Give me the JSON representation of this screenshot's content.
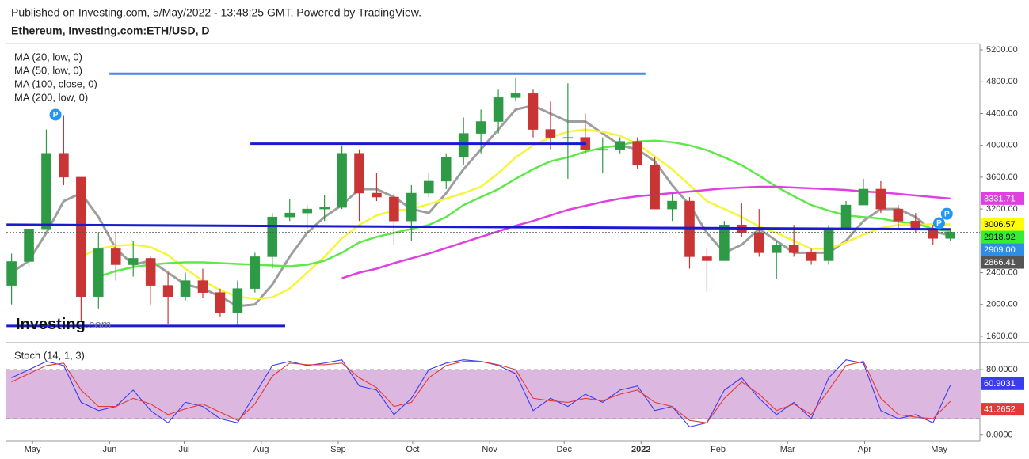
{
  "header": {
    "published": "Published on Investing.com, 5/May/2022 - 13:48:25 GMT, Powered by TradingView.",
    "symbol": "Ethereum, Investing.com:ETH/USD, D"
  },
  "watermark": [
    "Investing",
    ".com"
  ],
  "chart_data": [
    {
      "type": "candlestick",
      "xlim": [
        -0.3,
        55.7
      ],
      "ylim": [
        1530,
        5280
      ],
      "yticks": [
        {
          "value": 1600,
          "label": "1600.00"
        },
        {
          "value": 2000,
          "label": "2000.00"
        },
        {
          "value": 2400,
          "label": "2400.00"
        },
        {
          "value": 2800,
          "label": "2800.00"
        },
        {
          "value": 3200,
          "label": "3200.00"
        },
        {
          "value": 3600,
          "label": "3600.00"
        },
        {
          "value": 4000,
          "label": "4000.00"
        },
        {
          "value": 4400,
          "label": "4400.00"
        },
        {
          "value": 4800,
          "label": "4800.00"
        },
        {
          "value": 5200,
          "label": "5200.00"
        }
      ],
      "up_color": "#2e9a45",
      "down_color": "#c93535",
      "candles": {
        "open": [
          2240,
          2540,
          2950,
          3900,
          3600,
          2100,
          2700,
          2500,
          2580,
          2240,
          2100,
          2300,
          2150,
          1900,
          2200,
          2600,
          3100,
          3150,
          3200,
          3220,
          3900,
          3400,
          3350,
          3050,
          3400,
          3550,
          3850,
          4150,
          4300,
          4600,
          4650,
          4200,
          4100,
          4100,
          3950,
          3950,
          4050,
          3750,
          3200,
          3300,
          2600,
          2550,
          3000,
          2900,
          2650,
          2750,
          2650,
          2550,
          2950,
          3250,
          3450,
          3200,
          3050,
          2950,
          2830
        ],
        "high": [
          2640,
          2950,
          4200,
          4380,
          3600,
          2900,
          2900,
          2800,
          2600,
          2400,
          2400,
          2450,
          2200,
          2300,
          2650,
          3150,
          3330,
          3250,
          3380,
          4000,
          3950,
          3650,
          3400,
          3500,
          3650,
          3900,
          4350,
          4450,
          4700,
          4850,
          4700,
          4550,
          4780,
          4400,
          4100,
          4100,
          4100,
          3850,
          3400,
          3350,
          2700,
          3050,
          3280,
          3200,
          2800,
          3000,
          2700,
          3000,
          3300,
          3580,
          3550,
          3250,
          3150,
          3000,
          2960
        ],
        "low": [
          2000,
          2470,
          2950,
          3500,
          1800,
          1950,
          2300,
          2350,
          2000,
          1750,
          2050,
          2080,
          1850,
          1720,
          2150,
          2450,
          3050,
          2950,
          3050,
          3200,
          3050,
          3300,
          2750,
          2800,
          3350,
          3450,
          3750,
          3900,
          4150,
          4550,
          4100,
          3950,
          3580,
          3900,
          3650,
          3900,
          3700,
          3200,
          3050,
          2450,
          2160,
          2550,
          2850,
          2600,
          2320,
          2600,
          2500,
          2500,
          2950,
          3250,
          3150,
          2950,
          2900,
          2750,
          2800
        ],
        "close": [
          2540,
          2950,
          3900,
          3600,
          2100,
          2700,
          2500,
          2580,
          2240,
          2100,
          2300,
          2150,
          1900,
          2200,
          2600,
          3100,
          3150,
          3200,
          3220,
          3900,
          3400,
          3350,
          3050,
          3400,
          3550,
          3850,
          4150,
          4300,
          4600,
          4650,
          4200,
          4100,
          4100,
          3950,
          3950,
          4050,
          3750,
          3200,
          3300,
          2600,
          2550,
          3000,
          2900,
          2650,
          2750,
          2650,
          2550,
          2950,
          3250,
          3450,
          3200,
          3050,
          2950,
          2830,
          2909
        ]
      },
      "last_price": {
        "value": 2909,
        "label": "2909.00",
        "color": "#2f8de4"
      },
      "series": [
        {
          "name": "MA (20, low, 0)",
          "color": "#9e9e9e",
          "label_color": "#555555",
          "values": [
            2400,
            2550,
            2900,
            3300,
            3400,
            3100,
            2700,
            2500,
            2550,
            2400,
            2250,
            2200,
            2100,
            1980,
            2000,
            2250,
            2600,
            2900,
            3100,
            3250,
            3450,
            3450,
            3350,
            3200,
            3150,
            3400,
            3700,
            3950,
            4200,
            4450,
            4500,
            4400,
            4300,
            4300,
            4150,
            4000,
            3950,
            3800,
            3500,
            3250,
            2900,
            2650,
            2750,
            2950,
            2800,
            2650,
            2650,
            2650,
            2800,
            3050,
            3200,
            3200,
            3100,
            2920,
            2866.41
          ]
        },
        {
          "name": "MA (50, low, 0)",
          "color": "#f5f53a",
          "label_color": "#ffff00",
          "values": [
            null,
            null,
            null,
            null,
            2600,
            2700,
            2740,
            2750,
            2720,
            2620,
            2450,
            2300,
            2180,
            2100,
            2070,
            2090,
            2200,
            2400,
            2600,
            2830,
            3000,
            3120,
            3180,
            3200,
            3260,
            3330,
            3400,
            3480,
            3650,
            3850,
            4000,
            4100,
            4170,
            4200,
            4170,
            4120,
            4020,
            3860,
            3700,
            3500,
            3300,
            3200,
            3100,
            2980,
            2900,
            2800,
            2700,
            2700,
            2780,
            2880,
            2960,
            3000,
            3000,
            3010,
            3006.57
          ]
        },
        {
          "name": "MA (100, close, 0)",
          "color": "#5fe84a",
          "label_color": "#33ee33",
          "values": [
            null,
            null,
            null,
            null,
            null,
            2350,
            2420,
            2470,
            2500,
            2520,
            2530,
            2530,
            2520,
            2510,
            2500,
            2490,
            2480,
            2500,
            2550,
            2650,
            2780,
            2850,
            2900,
            2950,
            3000,
            3100,
            3250,
            3350,
            3450,
            3580,
            3700,
            3800,
            3850,
            3920,
            3970,
            4000,
            4050,
            4060,
            4040,
            4000,
            3940,
            3850,
            3750,
            3620,
            3480,
            3360,
            3250,
            3180,
            3120,
            3100,
            3080,
            3040,
            3020,
            2950,
            2918.92
          ]
        },
        {
          "name": "MA (200, low, 0)",
          "color": "#e040e0",
          "label_color": "#e040e0",
          "values": [
            null,
            null,
            null,
            null,
            null,
            null,
            null,
            null,
            null,
            null,
            null,
            null,
            null,
            null,
            null,
            null,
            null,
            null,
            null,
            2330,
            2400,
            2450,
            2520,
            2580,
            2640,
            2710,
            2780,
            2850,
            2920,
            2990,
            3050,
            3120,
            3190,
            3240,
            3290,
            3330,
            3360,
            3380,
            3400,
            3420,
            3440,
            3460,
            3470,
            3480,
            3480,
            3470,
            3460,
            3450,
            3440,
            3420,
            3410,
            3390,
            3370,
            3350,
            3331.71
          ]
        }
      ],
      "lines": [
        {
          "x": [
            5.63,
            36.46
          ],
          "y": [
            4900,
            4900
          ],
          "color": "#4a86e8"
        },
        {
          "x": [
            13.74,
            33.05
          ],
          "y": [
            4020,
            4020
          ],
          "color": "#1a1ad0"
        },
        {
          "x": [
            -0.29,
            54.0
          ],
          "y": [
            3003,
            2945
          ],
          "color": "#1a1ad0"
        },
        {
          "x": [
            -0.29,
            15.74
          ],
          "y": [
            1730,
            1730
          ],
          "color": "#1a1ad0"
        }
      ],
      "pivots": [
        {
          "label": "P",
          "x": 2.53,
          "y": 4385
        },
        {
          "label": "P",
          "x": 53.35,
          "y": 3022
        },
        {
          "label": "P",
          "x": 53.8,
          "y": 3140
        }
      ]
    },
    {
      "type": "line",
      "title": "Stoch (14, 1, 3)",
      "xlim": [
        -0.3,
        55.7
      ],
      "ylim": [
        -7,
        112
      ],
      "xticks": [
        {
          "value": 1.21,
          "label": "May"
        },
        {
          "value": 5.64,
          "label": "Jun"
        },
        {
          "value": 9.93,
          "label": "Jul"
        },
        {
          "value": 14.36,
          "label": "Aug"
        },
        {
          "value": 18.79,
          "label": "Sep"
        },
        {
          "value": 23.07,
          "label": "Oct"
        },
        {
          "value": 27.5,
          "label": "Nov"
        },
        {
          "value": 31.79,
          "label": "Dec"
        },
        {
          "value": 36.21,
          "label": "2022"
        },
        {
          "value": 40.64,
          "label": "Feb"
        },
        {
          "value": 44.64,
          "label": "Mar"
        },
        {
          "value": 49.07,
          "label": "Apr"
        },
        {
          "value": 53.36,
          "label": "May"
        }
      ],
      "yticks": [
        {
          "value": 0,
          "label": "0.0000"
        },
        {
          "value": 80,
          "label": "80.0000"
        }
      ],
      "band": [
        20,
        80
      ],
      "band_color": "#dcb8e0",
      "series": [
        {
          "color": "#3b3bf0",
          "values": [
            70,
            80,
            90,
            85,
            40,
            30,
            35,
            55,
            30,
            15,
            40,
            35,
            20,
            15,
            50,
            85,
            90,
            85,
            88,
            92,
            60,
            55,
            25,
            45,
            80,
            88,
            92,
            90,
            85,
            75,
            30,
            45,
            35,
            50,
            40,
            55,
            60,
            30,
            35,
            10,
            15,
            55,
            70,
            45,
            25,
            40,
            20,
            70,
            92,
            88,
            30,
            20,
            25,
            15,
            60.9031
          ]
        },
        {
          "color": "#e53935",
          "values": [
            65,
            75,
            85,
            88,
            55,
            35,
            35,
            45,
            38,
            25,
            32,
            38,
            28,
            18,
            38,
            72,
            88,
            86,
            86,
            88,
            70,
            58,
            35,
            40,
            70,
            85,
            90,
            90,
            86,
            80,
            45,
            42,
            40,
            45,
            42,
            50,
            55,
            40,
            35,
            18,
            15,
            45,
            65,
            50,
            30,
            38,
            25,
            55,
            85,
            90,
            45,
            25,
            22,
            20,
            41.2652
          ]
        }
      ]
    }
  ]
}
